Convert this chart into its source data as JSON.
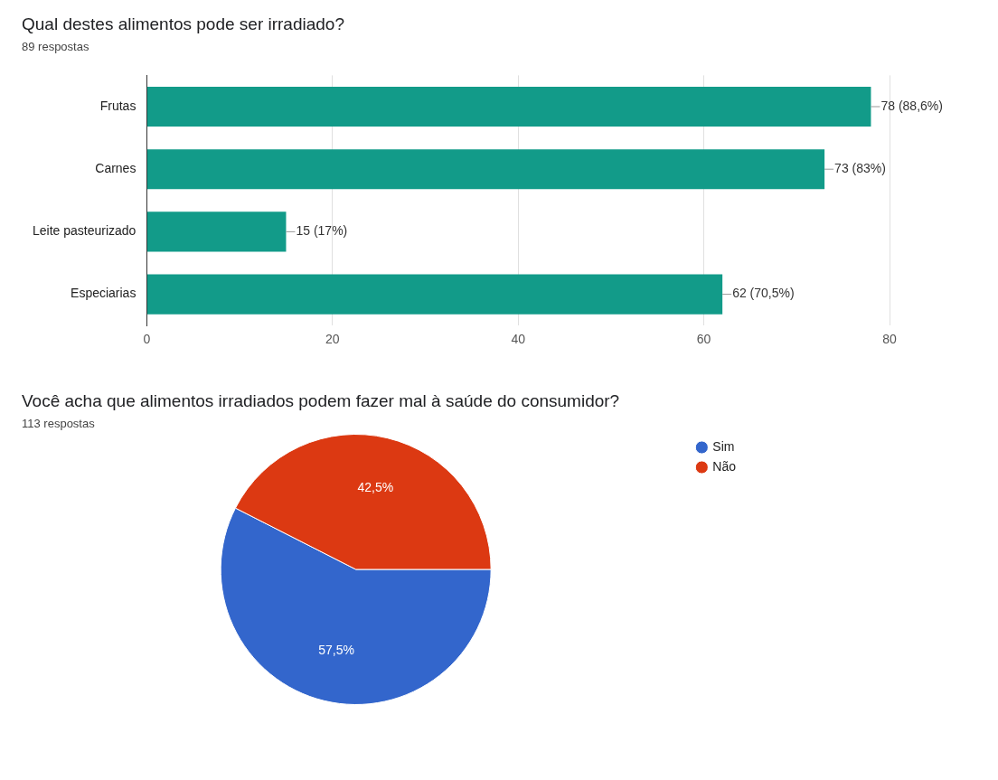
{
  "chart_data": [
    {
      "type": "bar",
      "title": "Qual destes alimentos pode ser irradiado?",
      "subtitle": "89 respostas",
      "orientation": "horizontal",
      "categories": [
        "Frutas",
        "Carnes",
        "Leite pasteurizado",
        "Especiarias"
      ],
      "values": [
        78,
        73,
        15,
        62
      ],
      "value_labels": [
        "78 (88,6%)",
        "73 (83%)",
        "15 (17%)",
        "62 (70,5%)"
      ],
      "color": "#129b89",
      "xlim": [
        0,
        80
      ],
      "xticks": [
        0,
        20,
        40,
        60,
        80
      ],
      "grid": "x"
    },
    {
      "type": "pie",
      "title": "Você acha que alimentos irradiados podem fazer mal à saúde do consumidor?",
      "subtitle": "113 respostas",
      "categories": [
        "Sim",
        "Não"
      ],
      "values": [
        57.5,
        42.5
      ],
      "colors": [
        "#3366cc",
        "#dc3912"
      ],
      "value_labels": [
        "57,5%",
        "42,5%"
      ],
      "legend": "top right"
    }
  ]
}
